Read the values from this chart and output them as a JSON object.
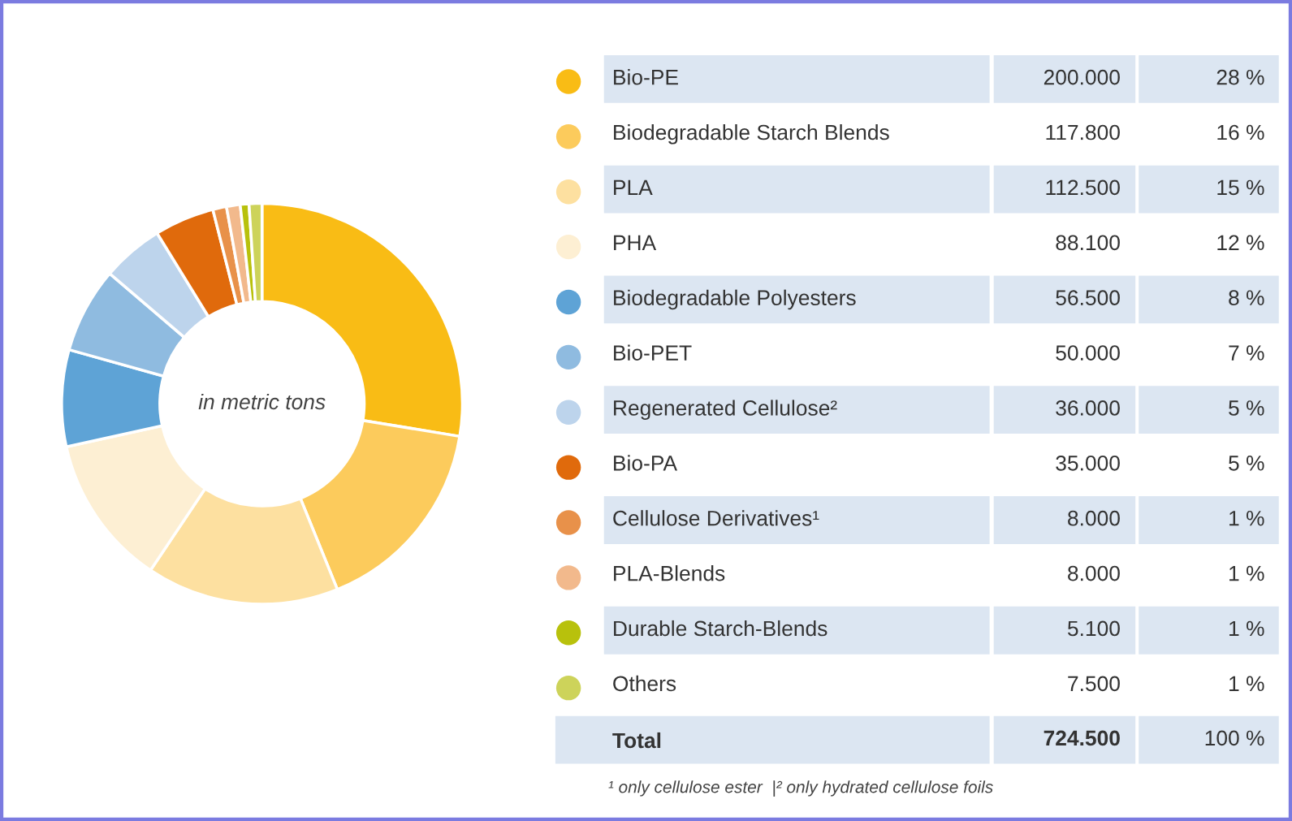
{
  "chart_data": {
    "type": "donut",
    "categories": [
      "Bio-PE",
      "Biodegradable Starch Blends",
      "PLA",
      "PHA",
      "Biodegradable Polyesters",
      "Bio-PET",
      "Regenerated Cellulose²",
      "Bio-PA",
      "Cellulose Derivatives¹",
      "PLA-Blends",
      "Durable Starch-Blends",
      "Others"
    ],
    "values": [
      200000,
      117800,
      112500,
      88100,
      56500,
      50000,
      36000,
      35000,
      8000,
      8000,
      5100,
      7500
    ],
    "value_labels": [
      "200.000",
      "117.800",
      "112.500",
      "88.100",
      "56.500",
      "50.000",
      "36.000",
      "35.000",
      "8.000",
      "8.000",
      "5.100",
      "7.500"
    ],
    "colors": [
      "#f9bc15",
      "#fccb5c",
      "#fde0a0",
      "#fdefd3",
      "#5ea3d6",
      "#8fbbe0",
      "#bdd4ec",
      "#e06a0c",
      "#e8914a",
      "#f2b98c",
      "#b8c10c",
      "#cdd35a"
    ],
    "legend": "right",
    "annotations": [
      "in metric tons",
      "28 %",
      "16 %",
      "15 %",
      "12 %",
      "8 %",
      "7 %",
      "5 %",
      "5 %",
      "1 %",
      "1 %",
      "1 %",
      "1 %",
      "Total",
      "724.500",
      "100 %",
      "¹ only cellulose ester  |² only hydrated cellulose foils"
    ]
  }
}
